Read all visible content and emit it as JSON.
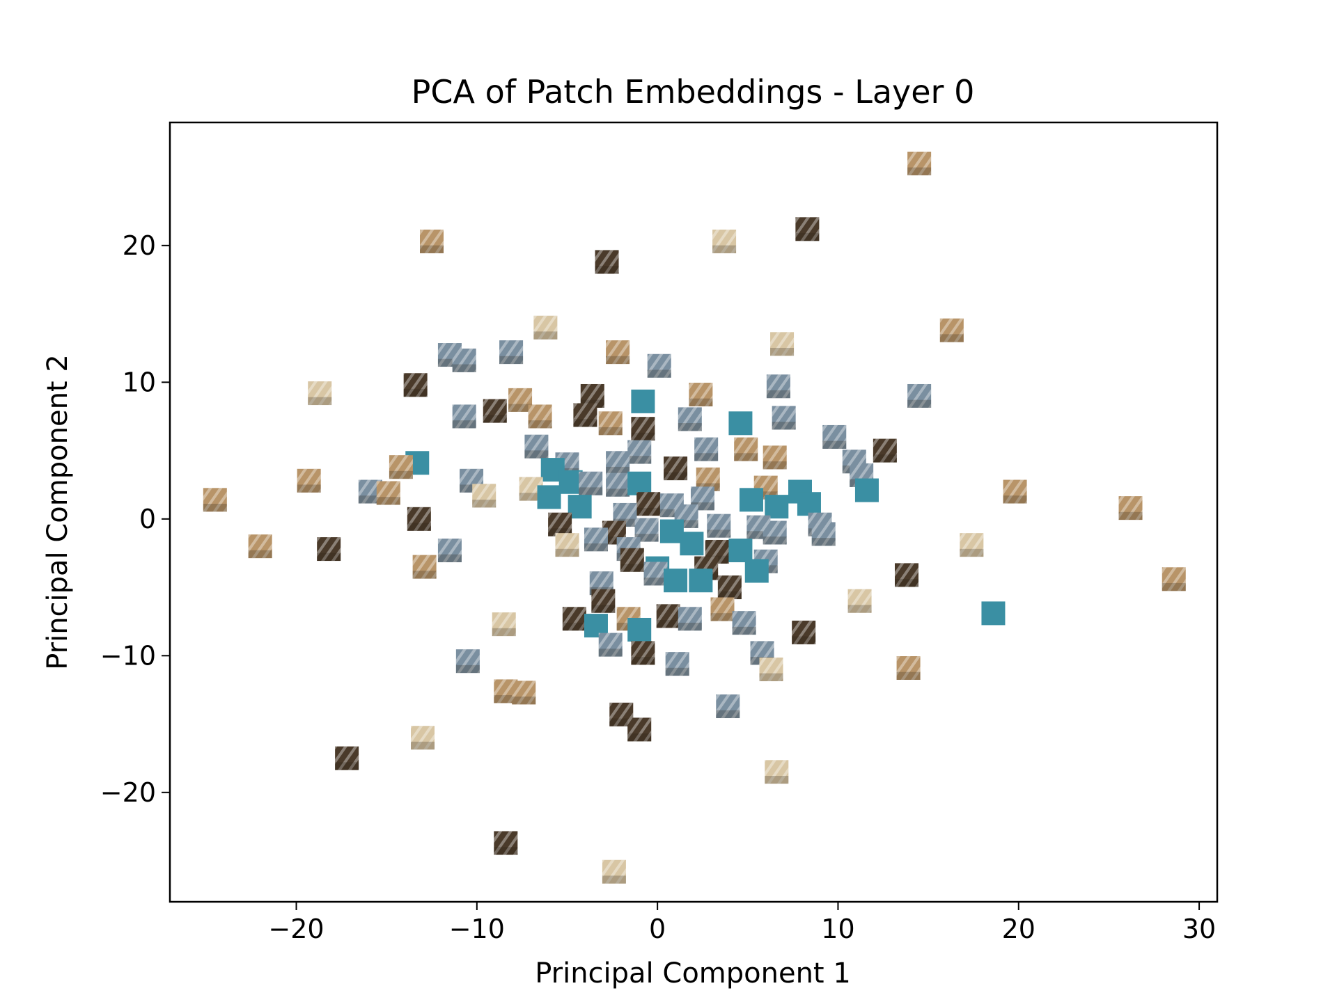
{
  "chart_data": {
    "type": "scatter",
    "title": "PCA of Patch Embeddings - Layer 0",
    "xlabel": "Principal Component 1",
    "ylabel": "Principal Component 2",
    "xlim": [
      -27,
      31
    ],
    "ylim": [
      -28,
      29
    ],
    "xticks": [
      -20,
      -10,
      0,
      10,
      20,
      30
    ],
    "yticks": [
      -20,
      -10,
      0,
      10,
      20
    ],
    "xtick_labels": [
      "−20",
      "−10",
      "0",
      "10",
      "20",
      "30"
    ],
    "ytick_labels": [
      "−20",
      "−10",
      "0",
      "10",
      "20"
    ],
    "grid": false,
    "marker": "image patch thumbnails",
    "colors": {
      "teal": "#3a8fa3",
      "tan": "#b89468",
      "dark_brown": "#4a3a2a",
      "cream": "#d8c6a4",
      "blue_gray": "#7a8fa0"
    },
    "points": [
      {
        "x": 14.5,
        "y": 26.0,
        "tone": "tan"
      },
      {
        "x": 8.3,
        "y": 21.2,
        "tone": "dark_brown"
      },
      {
        "x": 3.7,
        "y": 20.3,
        "tone": "cream"
      },
      {
        "x": -12.5,
        "y": 20.3,
        "tone": "tan"
      },
      {
        "x": -2.8,
        "y": 18.8,
        "tone": "dark_brown"
      },
      {
        "x": -6.2,
        "y": 14.0,
        "tone": "cream"
      },
      {
        "x": 16.3,
        "y": 13.8,
        "tone": "tan"
      },
      {
        "x": 6.9,
        "y": 12.8,
        "tone": "cream"
      },
      {
        "x": -11.5,
        "y": 12.0,
        "tone": "blue_gray"
      },
      {
        "x": -8.1,
        "y": 12.2,
        "tone": "blue_gray"
      },
      {
        "x": -2.2,
        "y": 12.2,
        "tone": "tan"
      },
      {
        "x": 0.1,
        "y": 11.2,
        "tone": "blue_gray"
      },
      {
        "x": -10.7,
        "y": 11.6,
        "tone": "blue_gray"
      },
      {
        "x": -18.7,
        "y": 9.2,
        "tone": "cream"
      },
      {
        "x": -13.4,
        "y": 9.8,
        "tone": "dark_brown"
      },
      {
        "x": 6.7,
        "y": 9.7,
        "tone": "blue_gray"
      },
      {
        "x": 2.4,
        "y": 9.1,
        "tone": "tan"
      },
      {
        "x": 14.5,
        "y": 9.0,
        "tone": "blue_gray"
      },
      {
        "x": -3.6,
        "y": 9.0,
        "tone": "dark_brown"
      },
      {
        "x": -0.8,
        "y": 8.6,
        "tone": "teal"
      },
      {
        "x": -7.6,
        "y": 8.7,
        "tone": "tan"
      },
      {
        "x": -9.0,
        "y": 7.9,
        "tone": "dark_brown"
      },
      {
        "x": -10.7,
        "y": 7.5,
        "tone": "blue_gray"
      },
      {
        "x": -6.5,
        "y": 7.5,
        "tone": "tan"
      },
      {
        "x": -4.0,
        "y": 7.6,
        "tone": "dark_brown"
      },
      {
        "x": 1.8,
        "y": 7.3,
        "tone": "blue_gray"
      },
      {
        "x": 7.0,
        "y": 7.4,
        "tone": "blue_gray"
      },
      {
        "x": -2.6,
        "y": 7.0,
        "tone": "tan"
      },
      {
        "x": 4.6,
        "y": 7.0,
        "tone": "teal"
      },
      {
        "x": -0.8,
        "y": 6.6,
        "tone": "dark_brown"
      },
      {
        "x": 9.8,
        "y": 6.0,
        "tone": "blue_gray"
      },
      {
        "x": -6.7,
        "y": 5.3,
        "tone": "blue_gray"
      },
      {
        "x": 2.7,
        "y": 5.1,
        "tone": "blue_gray"
      },
      {
        "x": 4.9,
        "y": 5.1,
        "tone": "tan"
      },
      {
        "x": 12.6,
        "y": 5.0,
        "tone": "dark_brown"
      },
      {
        "x": -1.0,
        "y": 4.9,
        "tone": "blue_gray"
      },
      {
        "x": 6.5,
        "y": 4.5,
        "tone": "tan"
      },
      {
        "x": 10.9,
        "y": 4.2,
        "tone": "blue_gray"
      },
      {
        "x": -5.0,
        "y": 4.0,
        "tone": "blue_gray"
      },
      {
        "x": -13.3,
        "y": 4.1,
        "tone": "teal"
      },
      {
        "x": -14.2,
        "y": 3.8,
        "tone": "tan"
      },
      {
        "x": -2.2,
        "y": 4.1,
        "tone": "blue_gray"
      },
      {
        "x": 1.0,
        "y": 3.7,
        "tone": "dark_brown"
      },
      {
        "x": -5.8,
        "y": 3.6,
        "tone": "teal"
      },
      {
        "x": 11.3,
        "y": 3.2,
        "tone": "blue_gray"
      },
      {
        "x": -19.3,
        "y": 2.8,
        "tone": "tan"
      },
      {
        "x": -10.3,
        "y": 2.8,
        "tone": "blue_gray"
      },
      {
        "x": 2.8,
        "y": 2.9,
        "tone": "tan"
      },
      {
        "x": -4.8,
        "y": 2.7,
        "tone": "teal"
      },
      {
        "x": -3.7,
        "y": 2.6,
        "tone": "blue_gray"
      },
      {
        "x": -2.2,
        "y": 2.5,
        "tone": "blue_gray"
      },
      {
        "x": -1.0,
        "y": 2.6,
        "tone": "teal"
      },
      {
        "x": -7.0,
        "y": 2.2,
        "tone": "cream"
      },
      {
        "x": 6.0,
        "y": 2.3,
        "tone": "tan"
      },
      {
        "x": 7.9,
        "y": 2.0,
        "tone": "teal"
      },
      {
        "x": 11.6,
        "y": 2.1,
        "tone": "teal"
      },
      {
        "x": 19.8,
        "y": 2.0,
        "tone": "tan"
      },
      {
        "x": -15.9,
        "y": 2.0,
        "tone": "blue_gray"
      },
      {
        "x": -14.9,
        "y": 1.9,
        "tone": "tan"
      },
      {
        "x": -9.6,
        "y": 1.7,
        "tone": "cream"
      },
      {
        "x": -6.0,
        "y": 1.6,
        "tone": "teal"
      },
      {
        "x": -24.5,
        "y": 1.4,
        "tone": "tan"
      },
      {
        "x": 2.5,
        "y": 1.5,
        "tone": "blue_gray"
      },
      {
        "x": 5.2,
        "y": 1.4,
        "tone": "teal"
      },
      {
        "x": -0.5,
        "y": 1.1,
        "tone": "dark_brown"
      },
      {
        "x": 0.8,
        "y": 1.0,
        "tone": "blue_gray"
      },
      {
        "x": -4.3,
        "y": 0.9,
        "tone": "teal"
      },
      {
        "x": 6.6,
        "y": 0.9,
        "tone": "teal"
      },
      {
        "x": 8.4,
        "y": 1.1,
        "tone": "teal"
      },
      {
        "x": 26.2,
        "y": 0.8,
        "tone": "tan"
      },
      {
        "x": -1.8,
        "y": 0.3,
        "tone": "blue_gray"
      },
      {
        "x": 1.6,
        "y": 0.2,
        "tone": "blue_gray"
      },
      {
        "x": -13.2,
        "y": 0.0,
        "tone": "dark_brown"
      },
      {
        "x": -5.4,
        "y": -0.4,
        "tone": "dark_brown"
      },
      {
        "x": 3.4,
        "y": -0.5,
        "tone": "blue_gray"
      },
      {
        "x": 5.6,
        "y": -0.6,
        "tone": "blue_gray"
      },
      {
        "x": 9.0,
        "y": -0.4,
        "tone": "blue_gray"
      },
      {
        "x": -0.6,
        "y": -0.8,
        "tone": "blue_gray"
      },
      {
        "x": 0.8,
        "y": -0.9,
        "tone": "teal"
      },
      {
        "x": -2.4,
        "y": -1.0,
        "tone": "dark_brown"
      },
      {
        "x": 6.5,
        "y": -1.0,
        "tone": "blue_gray"
      },
      {
        "x": 9.2,
        "y": -1.1,
        "tone": "blue_gray"
      },
      {
        "x": -3.4,
        "y": -1.5,
        "tone": "blue_gray"
      },
      {
        "x": -22.0,
        "y": -2.0,
        "tone": "tan"
      },
      {
        "x": -18.2,
        "y": -2.2,
        "tone": "dark_brown"
      },
      {
        "x": -5.0,
        "y": -1.9,
        "tone": "cream"
      },
      {
        "x": 1.9,
        "y": -1.8,
        "tone": "teal"
      },
      {
        "x": 17.4,
        "y": -1.9,
        "tone": "cream"
      },
      {
        "x": -11.5,
        "y": -2.3,
        "tone": "blue_gray"
      },
      {
        "x": -1.6,
        "y": -2.2,
        "tone": "blue_gray"
      },
      {
        "x": 3.3,
        "y": -2.4,
        "tone": "dark_brown"
      },
      {
        "x": 4.6,
        "y": -2.3,
        "tone": "teal"
      },
      {
        "x": -1.4,
        "y": -3.0,
        "tone": "dark_brown"
      },
      {
        "x": 6.0,
        "y": -3.1,
        "tone": "blue_gray"
      },
      {
        "x": -12.9,
        "y": -3.5,
        "tone": "tan"
      },
      {
        "x": 0.0,
        "y": -3.6,
        "tone": "teal"
      },
      {
        "x": 2.7,
        "y": -3.6,
        "tone": "dark_brown"
      },
      {
        "x": 5.5,
        "y": -3.8,
        "tone": "teal"
      },
      {
        "x": -0.1,
        "y": -4.0,
        "tone": "blue_gray"
      },
      {
        "x": 13.8,
        "y": -4.1,
        "tone": "dark_brown"
      },
      {
        "x": 1.0,
        "y": -4.5,
        "tone": "teal"
      },
      {
        "x": 2.4,
        "y": -4.5,
        "tone": "teal"
      },
      {
        "x": -3.1,
        "y": -4.7,
        "tone": "blue_gray"
      },
      {
        "x": 4.0,
        "y": -5.0,
        "tone": "dark_brown"
      },
      {
        "x": 28.6,
        "y": -4.4,
        "tone": "tan"
      },
      {
        "x": 11.2,
        "y": -6.0,
        "tone": "cream"
      },
      {
        "x": -3.0,
        "y": -6.0,
        "tone": "dark_brown"
      },
      {
        "x": 3.6,
        "y": -6.6,
        "tone": "tan"
      },
      {
        "x": 18.6,
        "y": -6.9,
        "tone": "teal"
      },
      {
        "x": -4.6,
        "y": -7.3,
        "tone": "dark_brown"
      },
      {
        "x": 0.6,
        "y": -7.1,
        "tone": "dark_brown"
      },
      {
        "x": -1.6,
        "y": -7.3,
        "tone": "tan"
      },
      {
        "x": 1.8,
        "y": -7.3,
        "tone": "blue_gray"
      },
      {
        "x": -8.5,
        "y": -7.7,
        "tone": "cream"
      },
      {
        "x": 4.8,
        "y": -7.6,
        "tone": "blue_gray"
      },
      {
        "x": -3.4,
        "y": -7.8,
        "tone": "teal"
      },
      {
        "x": -1.0,
        "y": -8.1,
        "tone": "teal"
      },
      {
        "x": 8.1,
        "y": -8.3,
        "tone": "dark_brown"
      },
      {
        "x": -2.6,
        "y": -9.2,
        "tone": "blue_gray"
      },
      {
        "x": -0.8,
        "y": -9.8,
        "tone": "dark_brown"
      },
      {
        "x": 5.8,
        "y": -9.8,
        "tone": "blue_gray"
      },
      {
        "x": -10.5,
        "y": -10.4,
        "tone": "blue_gray"
      },
      {
        "x": 1.1,
        "y": -10.6,
        "tone": "blue_gray"
      },
      {
        "x": 6.3,
        "y": -11.0,
        "tone": "cream"
      },
      {
        "x": 13.9,
        "y": -10.9,
        "tone": "tan"
      },
      {
        "x": -8.4,
        "y": -12.6,
        "tone": "tan"
      },
      {
        "x": -7.4,
        "y": -12.7,
        "tone": "tan"
      },
      {
        "x": 3.9,
        "y": -13.7,
        "tone": "blue_gray"
      },
      {
        "x": -2.0,
        "y": -14.3,
        "tone": "dark_brown"
      },
      {
        "x": -1.0,
        "y": -15.4,
        "tone": "dark_brown"
      },
      {
        "x": -13.0,
        "y": -16.0,
        "tone": "cream"
      },
      {
        "x": -17.2,
        "y": -17.5,
        "tone": "dark_brown"
      },
      {
        "x": 6.6,
        "y": -18.5,
        "tone": "cream"
      },
      {
        "x": -8.4,
        "y": -23.7,
        "tone": "dark_brown"
      },
      {
        "x": -2.4,
        "y": -25.8,
        "tone": "cream"
      }
    ]
  }
}
